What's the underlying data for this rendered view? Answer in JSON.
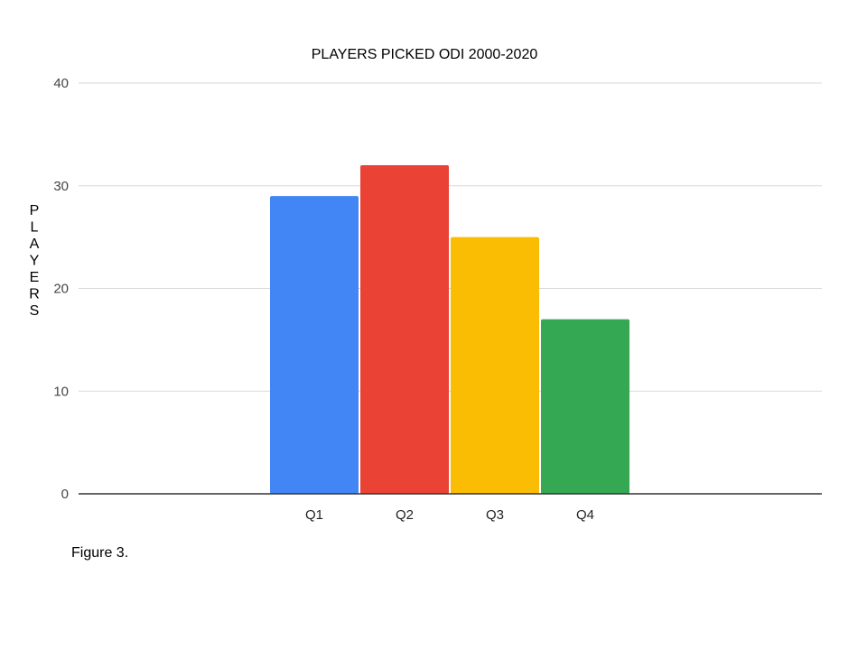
{
  "chart_data": {
    "type": "bar",
    "title": "PLAYERS PICKED ODI 2000-2020",
    "xlabel": "",
    "ylabel": "PLAYERS",
    "categories": [
      "Q1",
      "Q2",
      "Q3",
      "Q4"
    ],
    "values": [
      29,
      32,
      25,
      17
    ],
    "colors": [
      "#4285f4",
      "#ea4335",
      "#fbbc04",
      "#34a853"
    ],
    "ylim": [
      0,
      40
    ],
    "yticks": [
      0,
      10,
      20,
      30,
      40
    ],
    "grid": true,
    "legend": "none"
  },
  "caption": "Figure 3."
}
